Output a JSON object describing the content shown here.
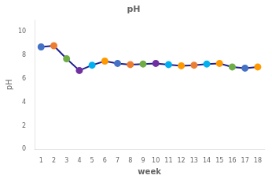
{
  "chart_data": {
    "type": "line",
    "title": "pH",
    "xlabel": "week",
    "ylabel": "pH",
    "x": [
      1,
      2,
      3,
      4,
      5,
      6,
      7,
      8,
      9,
      10,
      11,
      12,
      13,
      14,
      15,
      16,
      17,
      18
    ],
    "values": [
      8.7,
      8.8,
      7.7,
      6.7,
      7.15,
      7.5,
      7.3,
      7.2,
      7.25,
      7.3,
      7.2,
      7.1,
      7.15,
      7.25,
      7.3,
      7.0,
      6.9,
      7.0
    ],
    "color": "#1F1F8F",
    "colors": [
      "#4472C4",
      "#ED7D31",
      "#70AD47",
      "#7030A0",
      "#00B0F0",
      "#FF9900",
      "#4472C4",
      "#ED7D31",
      "#70AD47",
      "#7030A0",
      "#00B0F0",
      "#FF9900",
      "#ED7D31",
      "#00B0F0",
      "#FF9900",
      "#70AD47",
      "#4472C4",
      "#FF9900"
    ],
    "marker": "circle",
    "xlim": [
      0.5,
      18.5
    ],
    "xticks": [
      1,
      2,
      3,
      4,
      5,
      6,
      7,
      8,
      9,
      10,
      11,
      12,
      13,
      14,
      15,
      16,
      17,
      18
    ],
    "ylim": [
      0,
      11
    ],
    "yticks": [
      0,
      2,
      4,
      6,
      8,
      10
    ],
    "grid": false
  }
}
